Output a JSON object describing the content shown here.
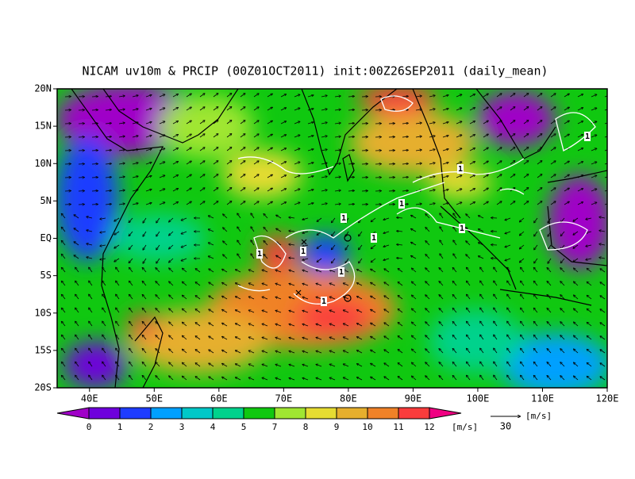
{
  "map": {
    "title": "NICAM uv10m & PRCIP (00Z01OCT2011) init:00Z26SEP2011 (daily_mean)",
    "xlim": [
      35,
      120
    ],
    "ylim": [
      -20,
      20
    ],
    "yticks": [
      {
        "value": 20,
        "label": "20N"
      },
      {
        "value": 15,
        "label": "15N"
      },
      {
        "value": 10,
        "label": "10N"
      },
      {
        "value": 5,
        "label": "5N"
      },
      {
        "value": 0,
        "label": "EQ"
      },
      {
        "value": -5,
        "label": "5S"
      },
      {
        "value": -10,
        "label": "10S"
      },
      {
        "value": -15,
        "label": "15S"
      },
      {
        "value": -20,
        "label": "20S"
      }
    ],
    "xticks": [
      {
        "value": 40,
        "label": "40E"
      },
      {
        "value": 50,
        "label": "50E"
      },
      {
        "value": 60,
        "label": "60E"
      },
      {
        "value": 70,
        "label": "70E"
      },
      {
        "value": 80,
        "label": "80E"
      },
      {
        "value": 90,
        "label": "90E"
      },
      {
        "value": 100,
        "label": "100E"
      },
      {
        "value": 110,
        "label": "110E"
      },
      {
        "value": 120,
        "label": "120E"
      }
    ],
    "colorbar": {
      "levels": [
        0,
        1,
        2,
        3,
        4,
        5,
        7,
        8,
        9,
        10,
        11,
        12
      ],
      "colors": [
        "#a000c8",
        "#6e00dc",
        "#1e3cff",
        "#00a0ff",
        "#00c8c8",
        "#00d28c",
        "#10c810",
        "#a0e632",
        "#e6dc32",
        "#e6af2d",
        "#f08228",
        "#fa3c3c",
        "#f00082"
      ],
      "unit": "[m/s]"
    },
    "reference_vector": {
      "value": "30",
      "unit": "[m/s]"
    },
    "contour_labels": [
      "1",
      "1",
      "1",
      "1",
      "1",
      "1",
      "1",
      "1",
      "1",
      "1"
    ]
  }
}
